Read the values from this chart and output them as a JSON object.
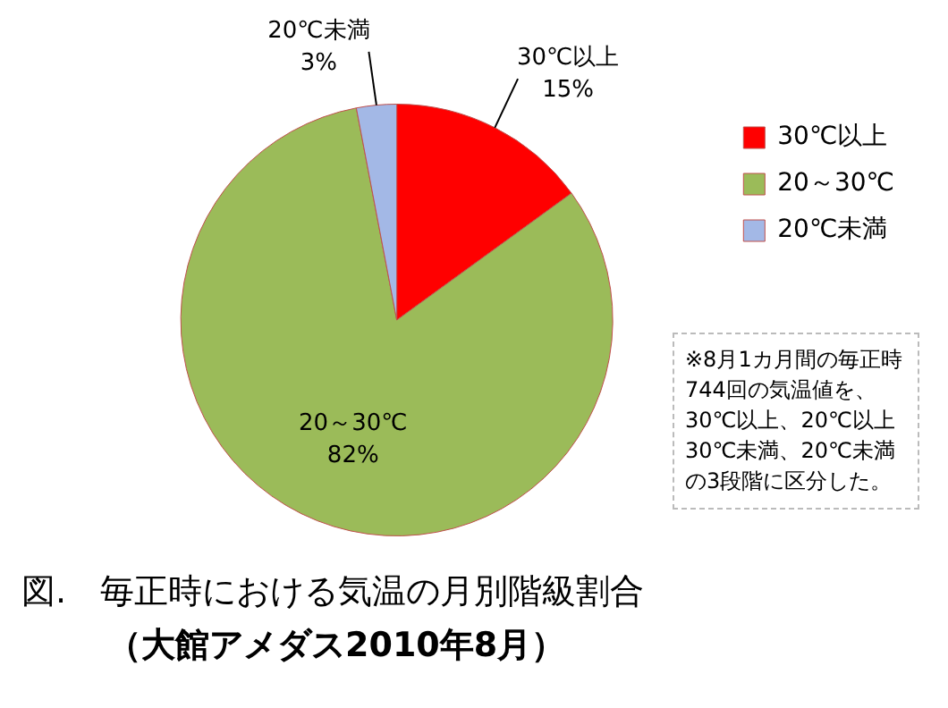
{
  "chart_data": {
    "type": "pie",
    "title": "図.　毎正時における気温の月別階級割合",
    "subtitle": "（大館アメダス2010年8月）",
    "categories": [
      "30℃以上",
      "20～30℃",
      "20℃未満"
    ],
    "values": [
      15,
      82,
      3
    ],
    "colors": [
      "#ff0000",
      "#9bbb59",
      "#a3b8e6"
    ],
    "value_labels": [
      "15%",
      "82%",
      "3%"
    ],
    "legend": "right",
    "annotations": [
      "※8月1カ月間の毎正時744回の気温値を、30℃以上、20℃以上30℃未満、20℃未満の3段階に区分した。"
    ]
  }
}
